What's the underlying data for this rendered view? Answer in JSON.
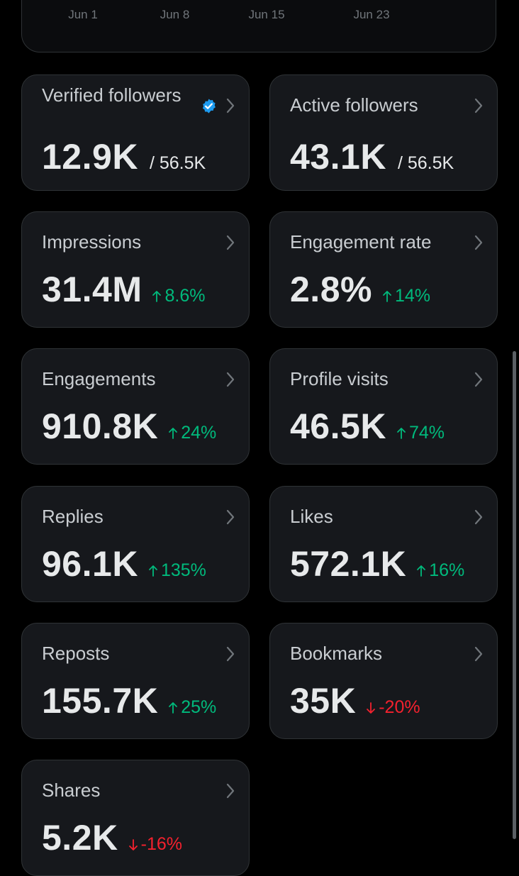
{
  "chart": {
    "x_ticks": [
      {
        "label": "Jun 1",
        "day": 1
      },
      {
        "label": "Jun 8",
        "day": 8
      },
      {
        "label": "Jun 15",
        "day": 15
      },
      {
        "label": "Jun 23",
        "day": 23
      }
    ],
    "colors": {
      "bar_a": "#1d9bf0",
      "bar_b": "#00ba7c"
    }
  },
  "colors": {
    "up": "#00ba7c",
    "down": "#f4212e",
    "verified": "#1d9bf0"
  },
  "cards": [
    {
      "label": "Verified followers",
      "value": "12.9K",
      "total": "/ 56.5K",
      "verified": true
    },
    {
      "label": "Active followers",
      "value": "43.1K",
      "total": "/ 56.5K"
    },
    {
      "label": "Impressions",
      "value": "31.4M",
      "delta": "8.6%",
      "direction": "up"
    },
    {
      "label": "Engagement rate",
      "value": "2.8%",
      "delta": "14%",
      "direction": "up"
    },
    {
      "label": "Engagements",
      "value": "910.8K",
      "delta": "24%",
      "direction": "up"
    },
    {
      "label": "Profile visits",
      "value": "46.5K",
      "delta": "74%",
      "direction": "up"
    },
    {
      "label": "Replies",
      "value": "96.1K",
      "delta": "135%",
      "direction": "up"
    },
    {
      "label": "Likes",
      "value": "572.1K",
      "delta": "16%",
      "direction": "up"
    },
    {
      "label": "Reposts",
      "value": "155.7K",
      "delta": "25%",
      "direction": "up"
    },
    {
      "label": "Bookmarks",
      "value": "35K",
      "delta": "-20%",
      "direction": "down"
    },
    {
      "label": "Shares",
      "value": "5.2K",
      "delta": "-16%",
      "direction": "down"
    }
  ]
}
